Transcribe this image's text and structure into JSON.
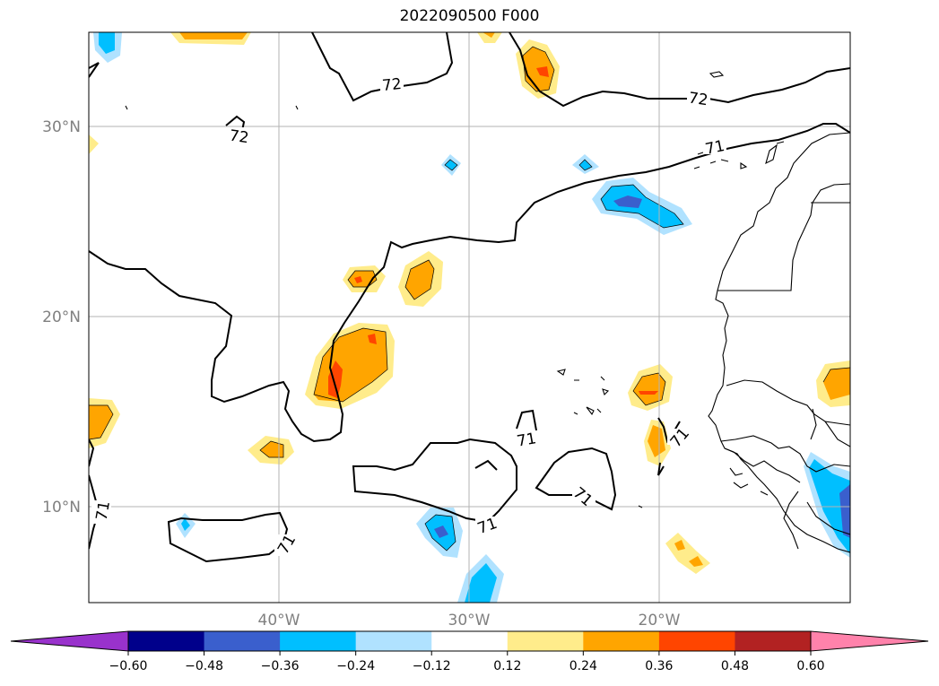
{
  "title": "2022090500 F000",
  "lon_labels": [
    "40°W",
    "30°W",
    "20°W"
  ],
  "lat_labels": [
    "30°N",
    "20°N",
    "10°N"
  ],
  "contour_labels": [
    "72",
    "72",
    "72",
    "71",
    "71",
    "71",
    "71",
    "71",
    "71",
    "71"
  ],
  "colorbar": {
    "ticks": [
      "−0.60",
      "−0.48",
      "−0.36",
      "−0.24",
      "−0.12",
      "0.12",
      "0.24",
      "0.36",
      "0.48",
      "0.60"
    ],
    "colors": [
      "#9932cc",
      "#00008b",
      "#3a5fcd",
      "#00bfff",
      "#b0e2ff",
      "#ffffff",
      "#ffec8b",
      "#ffa500",
      "#ff4500",
      "#b22222",
      "#ff82ab"
    ]
  },
  "anomaly_colors": {
    "pos_low": "#ffec8b",
    "pos_mid": "#ffa500",
    "pos_high": "#ff4500",
    "neg_low": "#b0e2ff",
    "neg_mid": "#00bfff",
    "neg_high": "#3a5fcd"
  }
}
